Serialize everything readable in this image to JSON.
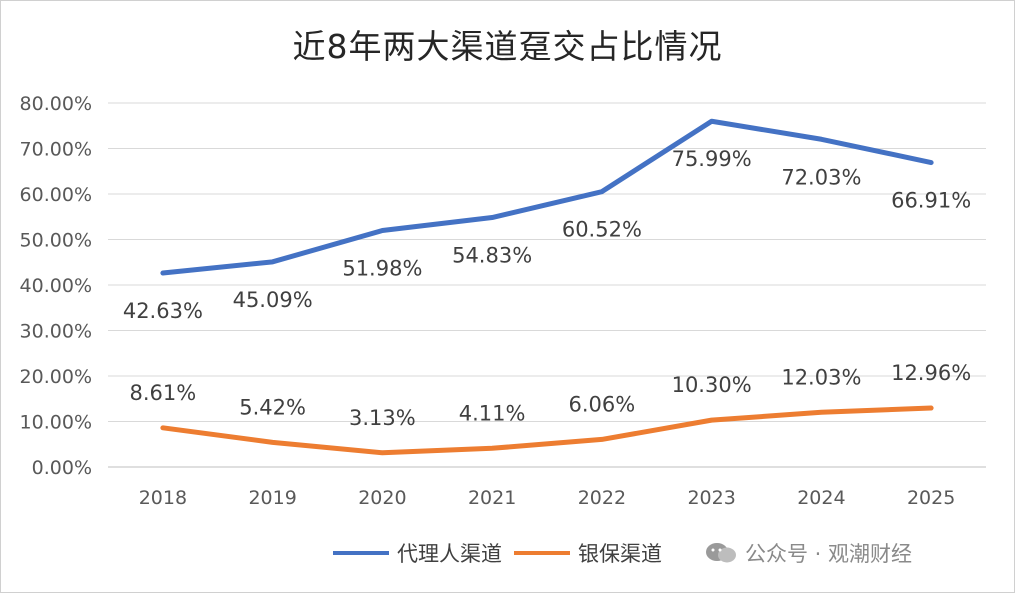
{
  "chart_data": {
    "type": "line",
    "title": "近8年两大渠道趸交占比情况",
    "categories": [
      "2018",
      "2019",
      "2020",
      "2021",
      "2022",
      "2023",
      "2024",
      "2025"
    ],
    "y_ticks": [
      "80.00%",
      "70.00%",
      "60.00%",
      "50.00%",
      "40.00%",
      "30.00%",
      "20.00%",
      "10.00%",
      "0.00%"
    ],
    "ylim": [
      0,
      80
    ],
    "grid": true,
    "legend_position": "bottom",
    "series": [
      {
        "name": "代理人渠道",
        "color": "#4472c4",
        "values": [
          42.63,
          45.09,
          51.98,
          54.83,
          60.52,
          75.99,
          72.03,
          66.91
        ],
        "labels": [
          "42.63%",
          "45.09%",
          "51.98%",
          "54.83%",
          "60.52%",
          "75.99%",
          "72.03%",
          "66.91%"
        ]
      },
      {
        "name": "银保渠道",
        "color": "#ed7d31",
        "values": [
          8.61,
          5.42,
          3.13,
          4.11,
          6.06,
          10.3,
          12.03,
          12.96
        ],
        "labels": [
          "8.61%",
          "5.42%",
          "3.13%",
          "4.11%",
          "6.06%",
          "10.30%",
          "12.03%",
          "12.96%"
        ]
      }
    ]
  },
  "watermark": {
    "icon": "wechat-icon",
    "text": "公众号 · 观潮财经"
  }
}
